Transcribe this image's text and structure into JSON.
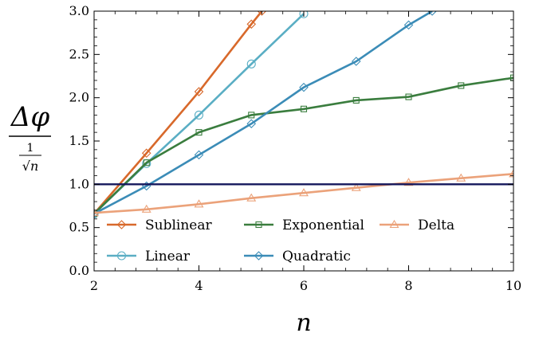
{
  "chart_data": {
    "type": "line",
    "xlim": [
      2,
      10
    ],
    "ylim": [
      0,
      3.0
    ],
    "x_ticks": [
      "2",
      "4",
      "6",
      "8",
      "10"
    ],
    "y_ticks": [
      "0.0",
      "0.5",
      "1.0",
      "1.5",
      "2.0",
      "2.5",
      "3.0"
    ],
    "xlabel": "n",
    "ylabel": {
      "top": "Δφ",
      "bottom_numerator": "1",
      "bottom_denominator": "√n"
    },
    "reference_line": {
      "y": 1.0,
      "color": "#14175c"
    },
    "legend_position": "lower-center",
    "grid": false,
    "series": [
      {
        "name": "Sublinear",
        "color": "#d8692b",
        "marker": "diamond",
        "x": [
          2,
          3,
          4,
          5,
          5.2
        ],
        "y": [
          0.66,
          1.36,
          2.07,
          2.85,
          3.0
        ]
      },
      {
        "name": "Linear",
        "color": "#5aaec4",
        "marker": "circle",
        "x": [
          2,
          3,
          4,
          5,
          6
        ],
        "y": [
          0.66,
          1.24,
          1.8,
          2.39,
          2.97
        ]
      },
      {
        "name": "Exponential",
        "color": "#3a7d3e",
        "marker": "square",
        "x": [
          2,
          3,
          4,
          5,
          6,
          7,
          8,
          9,
          10
        ],
        "y": [
          0.66,
          1.25,
          1.6,
          1.8,
          1.87,
          1.97,
          2.01,
          2.14,
          2.23
        ]
      },
      {
        "name": "Quadratic",
        "color": "#3b8cb7",
        "marker": "diamond",
        "x": [
          2,
          3,
          4,
          5,
          6,
          7,
          8,
          8.45
        ],
        "y": [
          0.66,
          0.98,
          1.34,
          1.7,
          2.12,
          2.42,
          2.84,
          3.0
        ]
      },
      {
        "name": "Delta",
        "color": "#eba27a",
        "marker": "triangle",
        "x": [
          2,
          3,
          4,
          5,
          6,
          7,
          8,
          9,
          10
        ],
        "y": [
          0.67,
          0.71,
          0.77,
          0.84,
          0.9,
          0.96,
          1.02,
          1.07,
          1.12
        ]
      }
    ]
  }
}
